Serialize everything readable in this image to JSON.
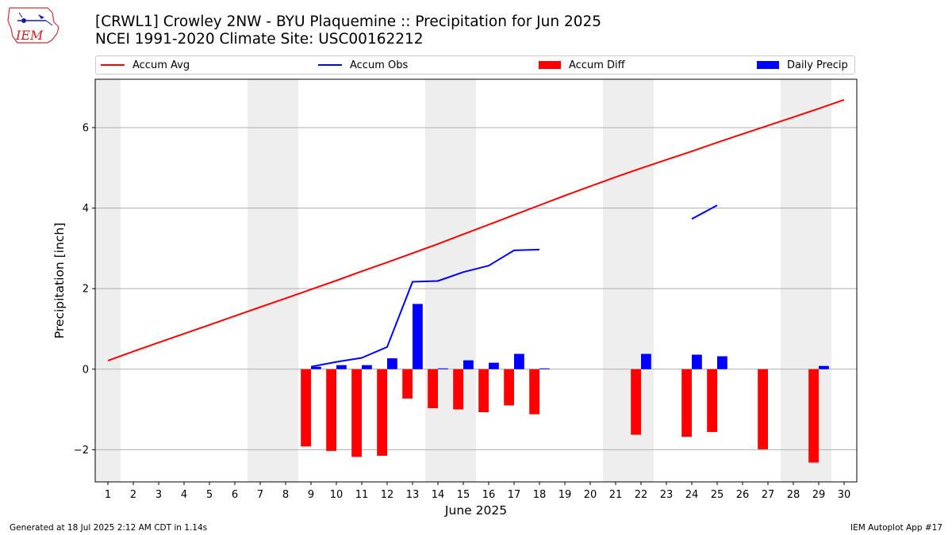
{
  "header": {
    "logo_text": "IEM",
    "title_line1": "[CRWL1] Crowley 2NW - BYU Plaquemine :: Precipitation for Jun 2025",
    "title_line2": "NCEI 1991-2020 Climate Site: USC00162212"
  },
  "footer": {
    "generated": "Generated at 18 Jul 2025 2:12 AM CDT in 1.14s",
    "app": "IEM Autoplot App #17"
  },
  "colors": {
    "accum_avg": "#ff0000",
    "accum_obs": "#0000ff",
    "accum_diff": "#ff0000",
    "daily_precip": "#0000ff",
    "weekend_shade": "#eeeeee",
    "grid": "#b0b0b0"
  },
  "chart_data": {
    "type": "bar",
    "xlabel": "June 2025",
    "ylabel": "Precipitation [inch]",
    "ylim": [
      -2.8,
      7.2
    ],
    "yticks": [
      -2,
      0,
      2,
      4,
      6
    ],
    "x": [
      1,
      2,
      3,
      4,
      5,
      6,
      7,
      8,
      9,
      10,
      11,
      12,
      13,
      14,
      15,
      16,
      17,
      18,
      19,
      20,
      21,
      22,
      23,
      24,
      25,
      26,
      27,
      28,
      29,
      30
    ],
    "weekend_days": [
      1,
      7,
      8,
      14,
      15,
      21,
      22,
      28,
      29
    ],
    "grid": "horizontal",
    "legend_placement": "top",
    "legend": [
      "Accum Avg",
      "Accum Obs",
      "Accum Diff",
      "Daily Precip"
    ],
    "series": [
      {
        "name": "Accum Avg",
        "kind": "line",
        "values": [
          0.21,
          0.44,
          0.66,
          0.88,
          1.1,
          1.32,
          1.54,
          1.76,
          1.98,
          2.2,
          2.43,
          2.65,
          2.88,
          3.11,
          3.35,
          3.59,
          3.83,
          4.07,
          4.31,
          4.54,
          4.77,
          4.99,
          5.2,
          5.41,
          5.63,
          5.84,
          6.05,
          6.26,
          6.47,
          6.69
        ]
      },
      {
        "name": "Accum Obs",
        "kind": "line",
        "values": [
          null,
          null,
          null,
          null,
          null,
          null,
          null,
          null,
          0.06,
          0.18,
          0.28,
          0.55,
          2.17,
          2.19,
          2.41,
          2.57,
          2.95,
          2.97,
          null,
          null,
          null,
          null,
          null,
          3.73,
          4.07,
          null,
          null,
          null,
          null,
          null
        ]
      },
      {
        "name": "Accum Diff",
        "kind": "bar",
        "values": [
          null,
          null,
          null,
          null,
          null,
          null,
          null,
          null,
          -1.92,
          -2.03,
          -2.18,
          -2.15,
          -0.73,
          -0.97,
          -1.0,
          -1.07,
          -0.9,
          -1.12,
          null,
          null,
          null,
          -1.63,
          null,
          -1.68,
          -1.56,
          null,
          -1.99,
          null,
          -2.32,
          null
        ]
      },
      {
        "name": "Daily Precip",
        "kind": "bar",
        "values": [
          null,
          null,
          null,
          null,
          null,
          null,
          null,
          null,
          0.06,
          0.1,
          0.1,
          0.27,
          1.62,
          0.02,
          0.22,
          0.16,
          0.38,
          0.02,
          null,
          null,
          null,
          0.38,
          null,
          0.36,
          0.32,
          null,
          null,
          null,
          0.08,
          null
        ]
      }
    ]
  }
}
